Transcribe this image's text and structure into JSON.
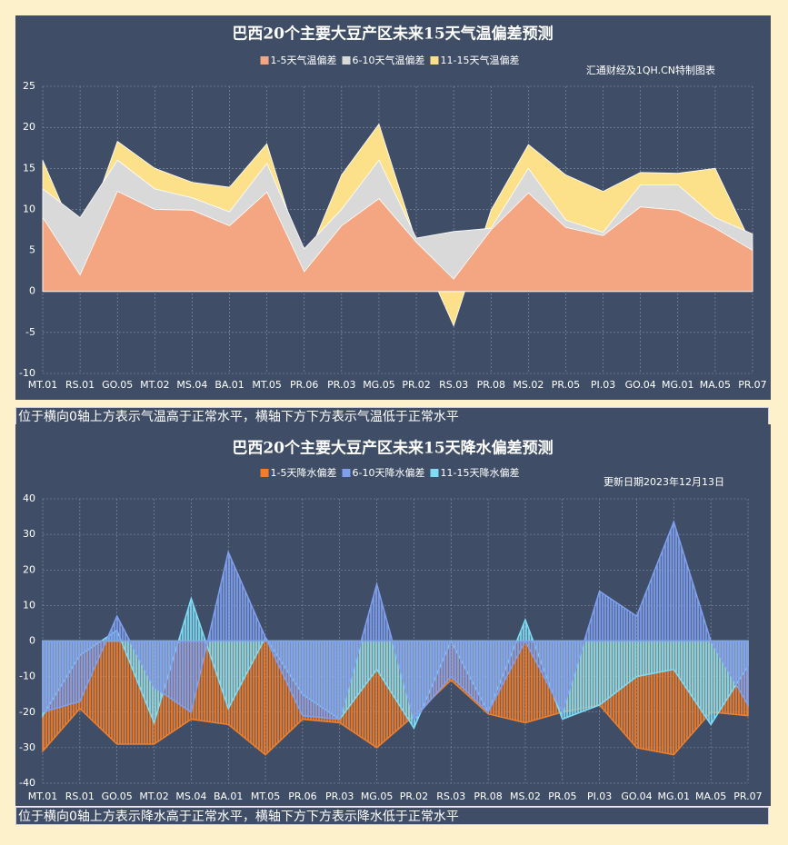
{
  "chart_data": [
    {
      "type": "area",
      "title": "巴西20个主要大豆产区未来15天气温偏差预测",
      "note": "汇通财经及1QH.CN特制图表",
      "caption": "位于横向0轴上方表示气温高于正常水平，横轴下方下方表示气温低于正常水平",
      "categories": [
        "MT.01",
        "RS.01",
        "GO.05",
        "MT.02",
        "MS.04",
        "BA.01",
        "MT.05",
        "PR.06",
        "PR.03",
        "MG.05",
        "PR.02",
        "RS.03",
        "PR.08",
        "MS.02",
        "PR.05",
        "PI.03",
        "GO.04",
        "MG.01",
        "MA.05",
        "PR.07"
      ],
      "series": [
        {
          "name": "11-15天气温偏差",
          "color": "#fde08a",
          "values": [
            16,
            5.4,
            18.3,
            15,
            13.3,
            12.7,
            18,
            3.2,
            14.2,
            20.4,
            6,
            -4.2,
            9.9,
            17.9,
            14.2,
            12.2,
            14.5,
            14.4,
            15,
            5.5
          ]
        },
        {
          "name": "6-10天气温偏差",
          "color": "#d9d9d9",
          "values": [
            12.5,
            9,
            16,
            12.5,
            11.4,
            9.7,
            15.6,
            5.2,
            10,
            16,
            6.5,
            7.3,
            7.7,
            15,
            8.7,
            7.2,
            13,
            13,
            9,
            7
          ]
        },
        {
          "name": "1-5天气温偏差",
          "color": "#f4a582",
          "values": [
            9,
            2,
            12.2,
            10,
            9.9,
            8,
            12.1,
            2.4,
            8,
            11.3,
            6,
            1.5,
            7.5,
            12,
            7.8,
            6.8,
            10.3,
            9.9,
            7.7,
            5
          ]
        }
      ],
      "legend_order": [
        2,
        1,
        0
      ],
      "ylim": [
        -10,
        25
      ],
      "yticks": [
        -10,
        -5,
        0,
        5,
        10,
        15,
        20,
        25
      ],
      "grid": true,
      "pattern": false
    },
    {
      "type": "area",
      "title": "巴西20个主要大豆产区未来15天降水偏差预测",
      "note": "更新日期2023年12月13日",
      "caption": "位于横向0轴上方表示降水高于正常水平，横轴下方下方表示降水低于正常水平",
      "categories": [
        "MT.01",
        "RS.01",
        "GO.05",
        "MT.02",
        "MS.04",
        "BA.01",
        "MT.05",
        "PR.06",
        "PR.03",
        "MG.05",
        "PR.02",
        "RS.03",
        "PR.08",
        "MS.02",
        "PR.05",
        "PI.03",
        "GO.04",
        "MG.01",
        "MA.05",
        "PR.07"
      ],
      "series": [
        {
          "name": "1-5天降水偏差",
          "color": "#f07f2c",
          "values": [
            -31,
            -19,
            -29,
            -29,
            -22,
            -23.5,
            -32,
            -22,
            -23,
            -30,
            -21,
            -11,
            -20.5,
            -23,
            -20,
            -18,
            -30,
            -32,
            -20,
            -21
          ]
        },
        {
          "name": "11-15天降水偏差",
          "color": "#7fdcf5",
          "values": [
            -21,
            -4,
            3,
            -23,
            12,
            -19,
            1,
            -15,
            -22,
            -8,
            -24.5,
            0,
            -20,
            6,
            -22,
            -18,
            -10,
            -8,
            -23.5,
            -7
          ]
        },
        {
          "name": "6-10天降水偏差",
          "color": "#7fa0ef",
          "values": [
            -20,
            -17,
            7,
            -13,
            -20,
            25,
            1,
            -21,
            -22,
            16,
            -22,
            -10,
            -20,
            0,
            -20,
            14,
            7,
            33.5,
            0,
            -18
          ]
        }
      ],
      "legend_order": [
        0,
        2,
        1
      ],
      "ylim": [
        -40,
        40
      ],
      "yticks": [
        -40,
        -30,
        -20,
        -10,
        0,
        10,
        20,
        30,
        40
      ],
      "grid": true,
      "pattern": true
    }
  ]
}
